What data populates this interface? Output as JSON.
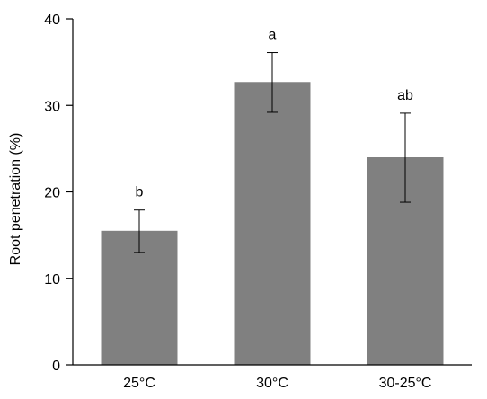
{
  "chart_data": {
    "type": "bar",
    "title": "",
    "xlabel": "",
    "ylabel": "Root penetration (%)",
    "ylim": [
      0,
      40
    ],
    "yticks": [
      0,
      10,
      20,
      30,
      40
    ],
    "grid": false,
    "categories": [
      "25°C",
      "30°C",
      "30-25°C"
    ],
    "values": [
      15.5,
      32.7,
      24.0
    ],
    "error_high": [
      17.9,
      36.1,
      29.1
    ],
    "error_low": [
      13.0,
      29.2,
      18.8
    ],
    "significance_letters": [
      "b",
      "a",
      "ab"
    ],
    "bar_color": "#808080",
    "error_bar_color": "#000000"
  }
}
